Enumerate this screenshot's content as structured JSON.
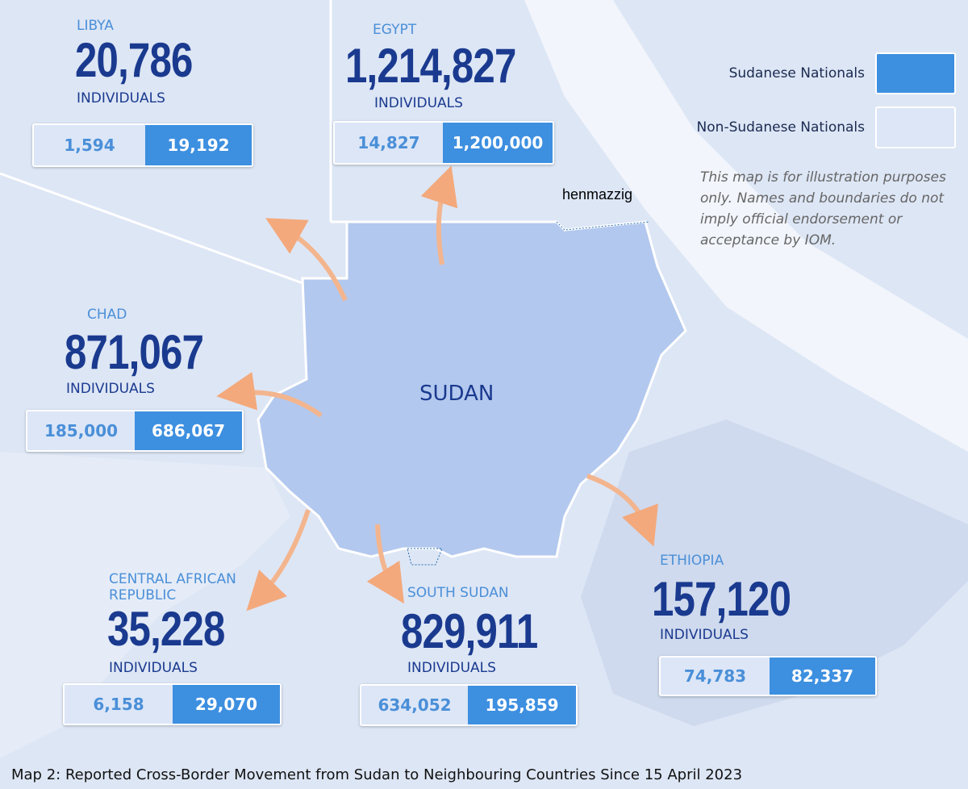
{
  "countries": [
    {
      "name": "LIBYA",
      "total": "20,786",
      "unit": "INDIVIDUALS",
      "non_sudanese": "1,594",
      "sudanese": "19,192"
    },
    {
      "name": "EGYPT",
      "total": "1,214,827",
      "unit": "INDIVIDUALS",
      "non_sudanese": "14,827",
      "sudanese": "1,200,000"
    },
    {
      "name": "CHAD",
      "total": "871,067",
      "unit": "INDIVIDUALS",
      "non_sudanese": "185,000",
      "sudanese": "686,067"
    },
    {
      "name": "CENTRAL AFRICAN REPUBLIC",
      "total": "35,228",
      "unit": "INDIVIDUALS",
      "non_sudanese": "6,158",
      "sudanese": "29,070"
    },
    {
      "name": "SOUTH SUDAN",
      "total": "829,911",
      "unit": "INDIVIDUALS",
      "non_sudanese": "634,052",
      "sudanese": "195,859"
    },
    {
      "name": "ETHIOPIA",
      "total": "157,120",
      "unit": "INDIVIDUALS",
      "non_sudanese": "74,783",
      "sudanese": "82,337"
    }
  ],
  "center_label": "SUDAN",
  "legend": {
    "sudanese": "Sudanese Nationals",
    "non_sudanese": "Non-Sudanese Nationals"
  },
  "disclaimer": "This map is for illustration purposes only. Names and boundaries do not imply official endorsement or acceptance by IOM.",
  "watermark": "henmazzig",
  "caption": "Map 2: Reported Cross-Border Movement from Sudan to Neighbouring Countries Since 15 April 2023"
}
